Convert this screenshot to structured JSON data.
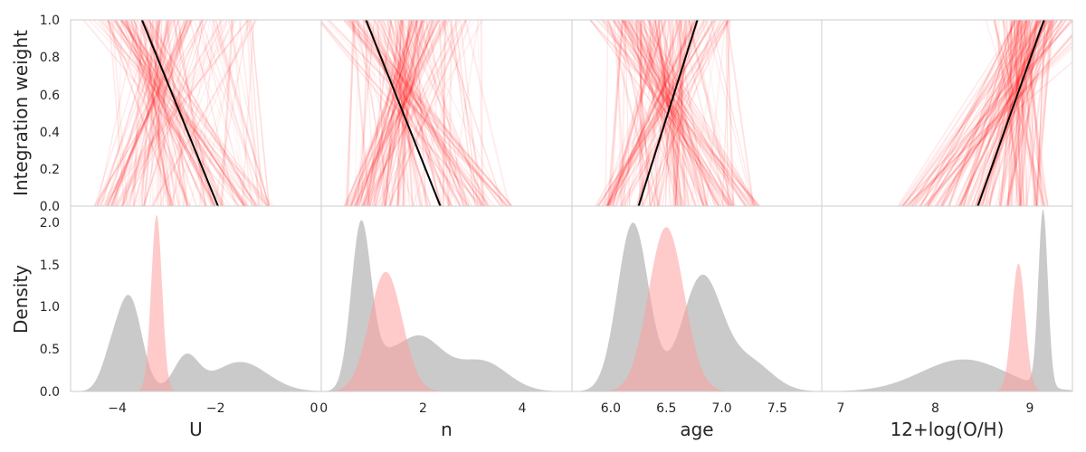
{
  "figure": {
    "ylabel_top": "Integration weight",
    "ylabel_bottom": "Density",
    "top_y_ticks": [
      "0.0",
      "0.2",
      "0.4",
      "0.6",
      "0.8",
      "1.0"
    ],
    "bottom_y_ticks": [
      "0.0",
      "0.5",
      "1.0",
      "1.5",
      "2.0"
    ]
  },
  "colors": {
    "line_bundle": "#ff0000",
    "best_fit": "#000000",
    "density_prior": "#a6a6a6",
    "density_posterior": "#ff9f9f",
    "frame": "#cccccc"
  },
  "chart_data": [
    {
      "type": "line",
      "panel": "weights-U",
      "xlabel": "",
      "ylabel": "Integration weight",
      "xlim": [
        -4.95,
        0.15
      ],
      "ylim": [
        0,
        1
      ],
      "best_fit": {
        "x": [
          -1.95,
          -3.5
        ],
        "y": [
          0,
          1
        ]
      },
      "bundle": {
        "x0_range": [
          -4.5,
          -0.8
        ],
        "x1_range": [
          -4.3,
          -1.1
        ],
        "pivot": [
          -3.2,
          0.68
        ],
        "count": 150
      }
    },
    {
      "type": "line",
      "panel": "weights-n",
      "xlabel": "",
      "ylabel": "",
      "xlim": [
        -0.05,
        5.0
      ],
      "ylim": [
        0,
        1
      ],
      "best_fit": {
        "x": [
          2.35,
          0.85
        ],
        "y": [
          0,
          1
        ]
      },
      "bundle": {
        "x0_range": [
          0.4,
          3.8
        ],
        "x1_range": [
          0.5,
          3.2
        ],
        "pivot": [
          1.6,
          0.63
        ],
        "count": 150
      }
    },
    {
      "type": "line",
      "panel": "weights-age",
      "xlabel": "",
      "ylabel": "",
      "xlim": [
        5.65,
        7.9
      ],
      "ylim": [
        0,
        1
      ],
      "best_fit": {
        "x": [
          6.25,
          6.78
        ],
        "y": [
          0,
          1
        ]
      },
      "bundle": {
        "x0_range": [
          5.85,
          7.35
        ],
        "x1_range": [
          5.95,
          7.1
        ],
        "pivot": [
          6.5,
          0.6
        ],
        "count": 150
      }
    },
    {
      "type": "line",
      "panel": "weights-oh",
      "xlabel": "",
      "ylabel": "",
      "xlim": [
        6.8,
        9.45
      ],
      "ylim": [
        0,
        1
      ],
      "best_fit": {
        "x": [
          8.45,
          9.15
        ],
        "y": [
          0,
          1
        ]
      },
      "bundle": {
        "x0_range": [
          7.6,
          9.2
        ],
        "x1_range": [
          8.8,
          9.25
        ],
        "pivot": [
          8.9,
          0.67
        ],
        "count": 150
      }
    },
    {
      "type": "area",
      "panel": "density-U",
      "xlabel": "U",
      "ylabel": "Density",
      "xlim": [
        -4.95,
        0.15
      ],
      "ylim": [
        0,
        2.2
      ],
      "x_ticks": [
        -4,
        -2,
        0
      ],
      "x_tick_labels": [
        "−4",
        "−2",
        "0"
      ],
      "series": [
        {
          "components": [
            [
              1.1,
              -3.75,
              0.25
            ],
            [
              0.4,
              -2.6,
              0.25
            ],
            [
              0.35,
              -1.5,
              0.55
            ],
            [
              0.3,
              -4.15,
              0.2
            ]
          ]
        },
        {
          "components": [
            [
              2.1,
              -3.2,
              0.11
            ]
          ]
        }
      ]
    },
    {
      "type": "area",
      "panel": "density-n",
      "xlabel": "n",
      "ylabel": "",
      "xlim": [
        -0.05,
        5.0
      ],
      "ylim": [
        0,
        2.2
      ],
      "x_ticks": [
        0,
        2,
        4
      ],
      "x_tick_labels": [
        "0",
        "2",
        "4"
      ],
      "series": [
        {
          "components": [
            [
              1.95,
              0.75,
              0.2
            ],
            [
              0.65,
              1.9,
              0.5
            ],
            [
              0.35,
              3.2,
              0.5
            ],
            [
              0.18,
              1.2,
              0.25
            ]
          ]
        },
        {
          "components": [
            [
              1.42,
              1.25,
              0.33
            ]
          ]
        }
      ]
    },
    {
      "type": "area",
      "panel": "density-age",
      "xlabel": "age",
      "ylabel": "",
      "xlim": [
        5.65,
        7.9
      ],
      "ylim": [
        0,
        2.2
      ],
      "x_ticks": [
        6.0,
        6.5,
        7.0,
        7.5
      ],
      "x_tick_labels": [
        "6.0",
        "6.5",
        "7.0",
        "7.5"
      ],
      "series": [
        {
          "components": [
            [
              2.0,
              6.2,
              0.14
            ],
            [
              1.35,
              6.82,
              0.18
            ],
            [
              0.35,
              7.25,
              0.2
            ]
          ]
        },
        {
          "components": [
            [
              1.95,
              6.5,
              0.16
            ]
          ]
        }
      ]
    },
    {
      "type": "area",
      "panel": "density-oh",
      "xlabel": "12+log(O/H)",
      "ylabel": "",
      "xlim": [
        6.8,
        9.45
      ],
      "ylim": [
        0,
        2.2
      ],
      "x_ticks": [
        7,
        8,
        9
      ],
      "x_tick_labels": [
        "7",
        "8",
        "9"
      ],
      "series": [
        {
          "components": [
            [
              2.1,
              9.14,
              0.05
            ],
            [
              0.38,
              8.3,
              0.45
            ]
          ]
        },
        {
          "components": [
            [
              1.52,
              8.88,
              0.07
            ]
          ]
        }
      ]
    }
  ]
}
